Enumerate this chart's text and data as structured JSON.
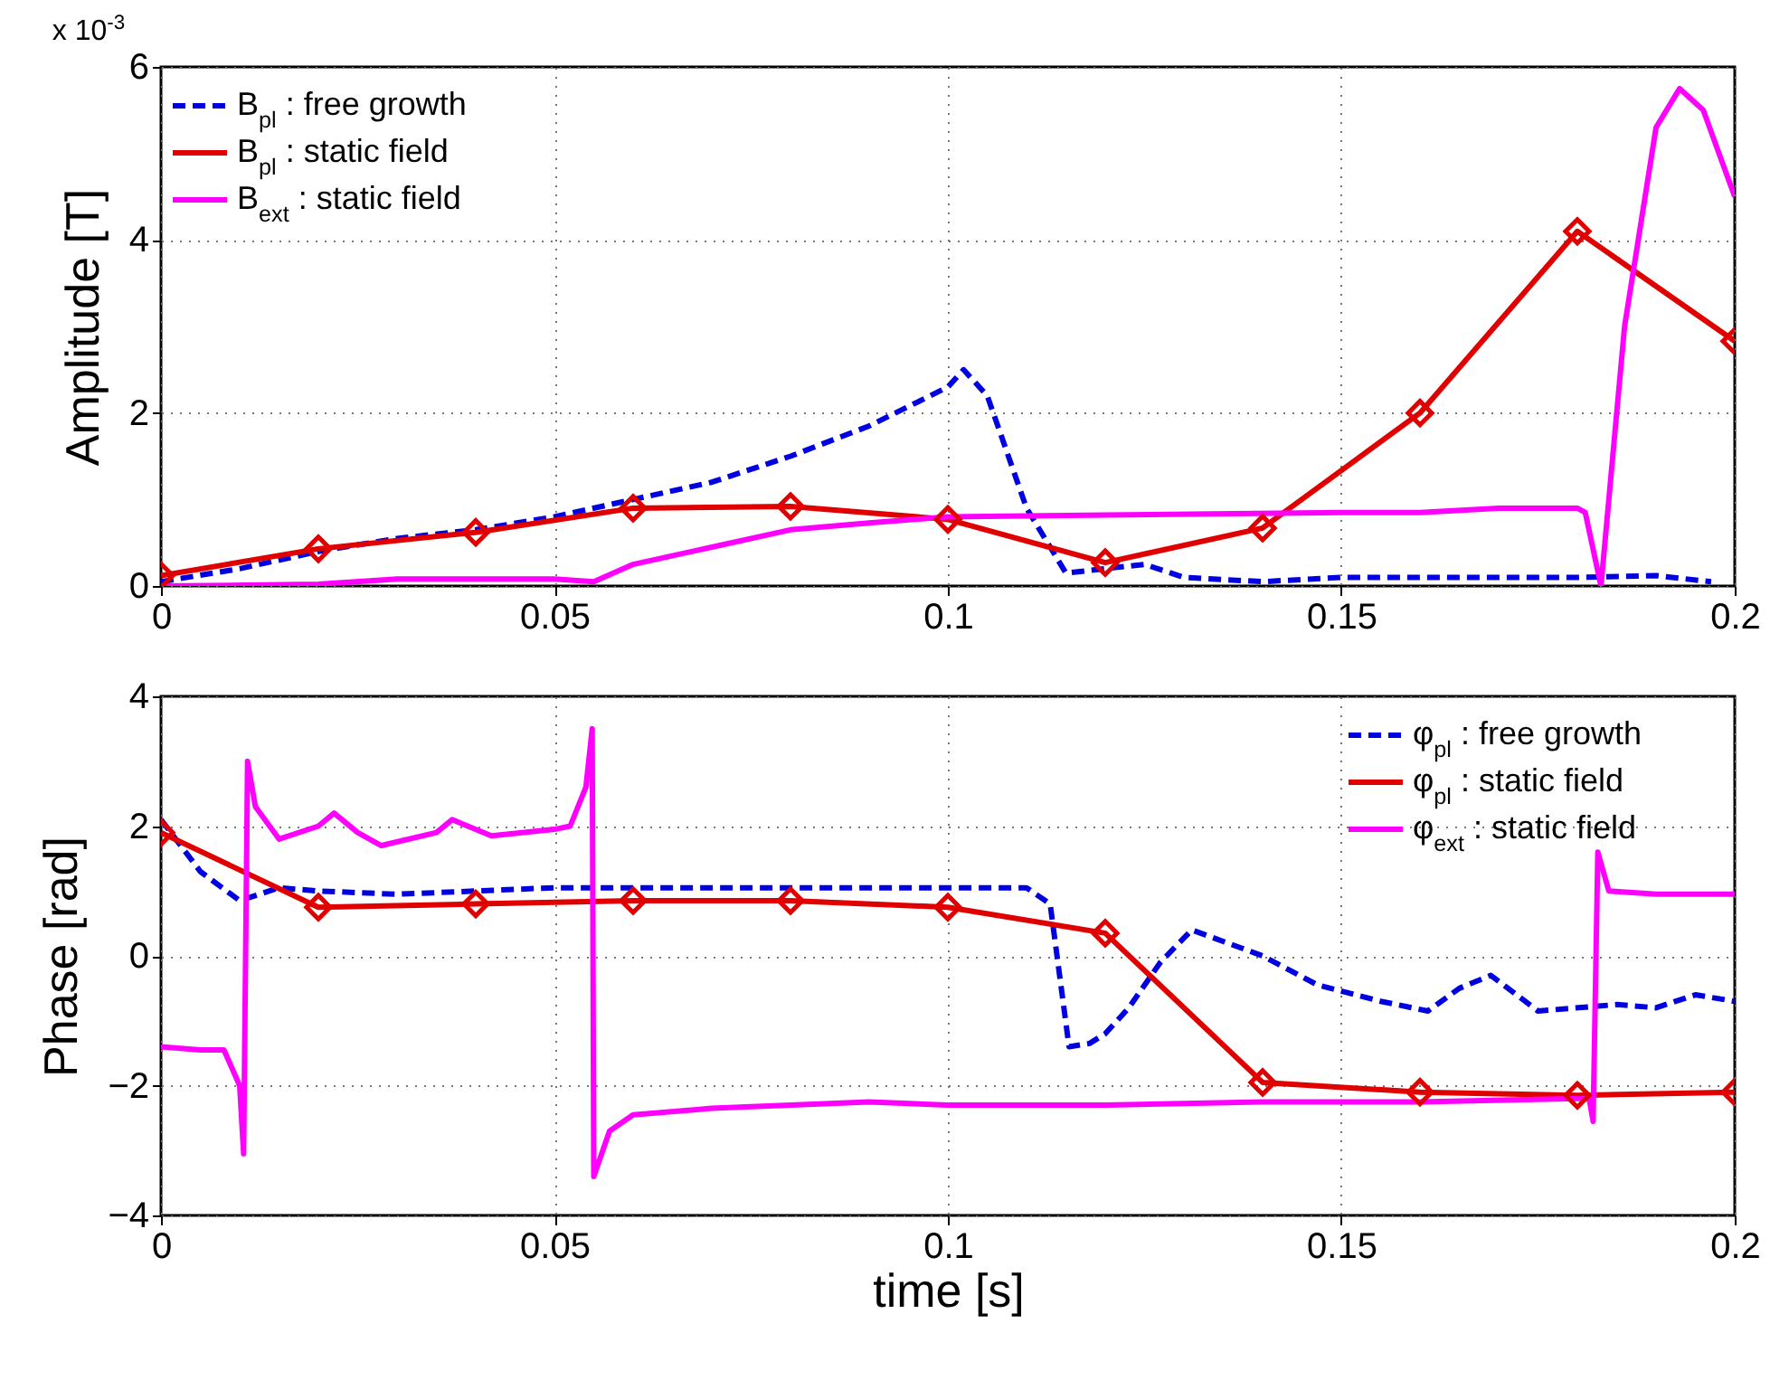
{
  "chart_data": [
    {
      "type": "line",
      "ylabel": "Amplitude [T]",
      "annotations": [
        "x 10$^{-3}$"
      ],
      "xlim": [
        0,
        0.2
      ],
      "ylim": [
        0,
        6
      ],
      "xticks": [
        0,
        0.05,
        0.1,
        0.15,
        0.2
      ],
      "yticks": [
        0,
        2,
        4,
        6
      ],
      "grid": true,
      "legend": "top left",
      "series": [
        {
          "name": "B$_{pl}$ : free growth",
          "color": "#0000e0",
          "line_style": "dashed",
          "x": [
            0,
            0.01,
            0.02,
            0.03,
            0.04,
            0.05,
            0.06,
            0.07,
            0.08,
            0.09,
            0.1,
            0.102,
            0.105,
            0.11,
            0.115,
            0.12,
            0.125,
            0.13,
            0.14,
            0.15,
            0.16,
            0.17,
            0.18,
            0.19,
            0.197
          ],
          "values": [
            0.05,
            0.2,
            0.4,
            0.55,
            0.65,
            0.8,
            1.0,
            1.2,
            1.5,
            1.85,
            2.3,
            2.5,
            2.2,
            0.9,
            0.15,
            0.2,
            0.25,
            0.1,
            0.05,
            0.1,
            0.1,
            0.1,
            0.1,
            0.12,
            0.05
          ]
        },
        {
          "name": "B$_{pl}$ : static field",
          "color": "#e00000",
          "line_style": "solid",
          "marker": "diamond",
          "x": [
            0,
            0.02,
            0.04,
            0.06,
            0.08,
            0.1,
            0.12,
            0.14,
            0.16,
            0.18,
            0.2
          ],
          "values": [
            0.12,
            0.43,
            0.62,
            0.9,
            0.92,
            0.77,
            0.27,
            0.67,
            2.0,
            4.1,
            2.83
          ]
        },
        {
          "name": "B$_{ext}$ : static field",
          "color": "#ff00ff",
          "line_style": "solid",
          "x": [
            0,
            0.02,
            0.03,
            0.05,
            0.055,
            0.06,
            0.07,
            0.08,
            0.09,
            0.1,
            0.12,
            0.15,
            0.16,
            0.17,
            0.18,
            0.181,
            0.183,
            0.186,
            0.19,
            0.193,
            0.196,
            0.2
          ],
          "values": [
            0.0,
            0.02,
            0.08,
            0.08,
            0.05,
            0.25,
            0.45,
            0.65,
            0.73,
            0.8,
            0.82,
            0.85,
            0.85,
            0.9,
            0.9,
            0.85,
            0.0,
            3.0,
            5.3,
            5.75,
            5.5,
            4.5
          ]
        }
      ]
    },
    {
      "type": "line",
      "ylabel": "Phase [rad]",
      "xlabel": "time [s]",
      "xlim": [
        0,
        0.2
      ],
      "ylim": [
        -4,
        4
      ],
      "xticks": [
        0,
        0.05,
        0.1,
        0.15,
        0.2
      ],
      "yticks": [
        -4,
        -2,
        0,
        2,
        4
      ],
      "grid": true,
      "legend": "top right",
      "series": [
        {
          "name": "φ$_{pl}$ : free growth",
          "color": "#0000e0",
          "line_style": "dashed",
          "x": [
            0,
            0.005,
            0.01,
            0.015,
            0.02,
            0.03,
            0.05,
            0.1,
            0.11,
            0.113,
            0.1154,
            0.118,
            0.12,
            0.123,
            0.127,
            0.131,
            0.14,
            0.147,
            0.155,
            0.161,
            0.165,
            0.169,
            0.175,
            0.185,
            0.19,
            0.195,
            0.2
          ],
          "values": [
            2.1,
            1.3,
            0.85,
            1.05,
            1.0,
            0.95,
            1.05,
            1.05,
            1.05,
            0.8,
            -1.4,
            -1.35,
            -1.2,
            -0.8,
            -0.1,
            0.4,
            0.0,
            -0.45,
            -0.7,
            -0.85,
            -0.5,
            -0.3,
            -0.85,
            -0.75,
            -0.8,
            -0.6,
            -0.7
          ]
        },
        {
          "name": "φ$_{pl}$ : static field",
          "color": "#e00000",
          "line_style": "solid",
          "marker": "diamond",
          "x": [
            0,
            0.02,
            0.04,
            0.06,
            0.08,
            0.1,
            0.12,
            0.14,
            0.16,
            0.18,
            0.2
          ],
          "values": [
            1.9,
            0.75,
            0.8,
            0.85,
            0.85,
            0.75,
            0.35,
            -1.95,
            -2.1,
            -2.15,
            -2.1
          ]
        },
        {
          "name": "φ$_{ext}$ : static field",
          "color": "#ff00ff",
          "line_style": "solid",
          "x": [
            0,
            0.005,
            0.008,
            0.01,
            0.0105,
            0.011,
            0.012,
            0.015,
            0.02,
            0.022,
            0.025,
            0.028,
            0.035,
            0.037,
            0.042,
            0.05,
            0.052,
            0.054,
            0.0548,
            0.055,
            0.057,
            0.06,
            0.07,
            0.09,
            0.1,
            0.12,
            0.14,
            0.16,
            0.18,
            0.1815,
            0.182,
            0.1826,
            0.184,
            0.19,
            0.2
          ],
          "values": [
            -1.4,
            -1.45,
            -1.45,
            -2.0,
            -3.05,
            3.0,
            2.3,
            1.8,
            2.0,
            2.2,
            1.9,
            1.7,
            1.9,
            2.1,
            1.85,
            1.95,
            2.0,
            2.6,
            3.5,
            -3.4,
            -2.7,
            -2.45,
            -2.35,
            -2.25,
            -2.3,
            -2.3,
            -2.25,
            -2.25,
            -2.2,
            -2.2,
            -2.55,
            1.6,
            1.0,
            0.95,
            0.95
          ]
        }
      ]
    }
  ]
}
